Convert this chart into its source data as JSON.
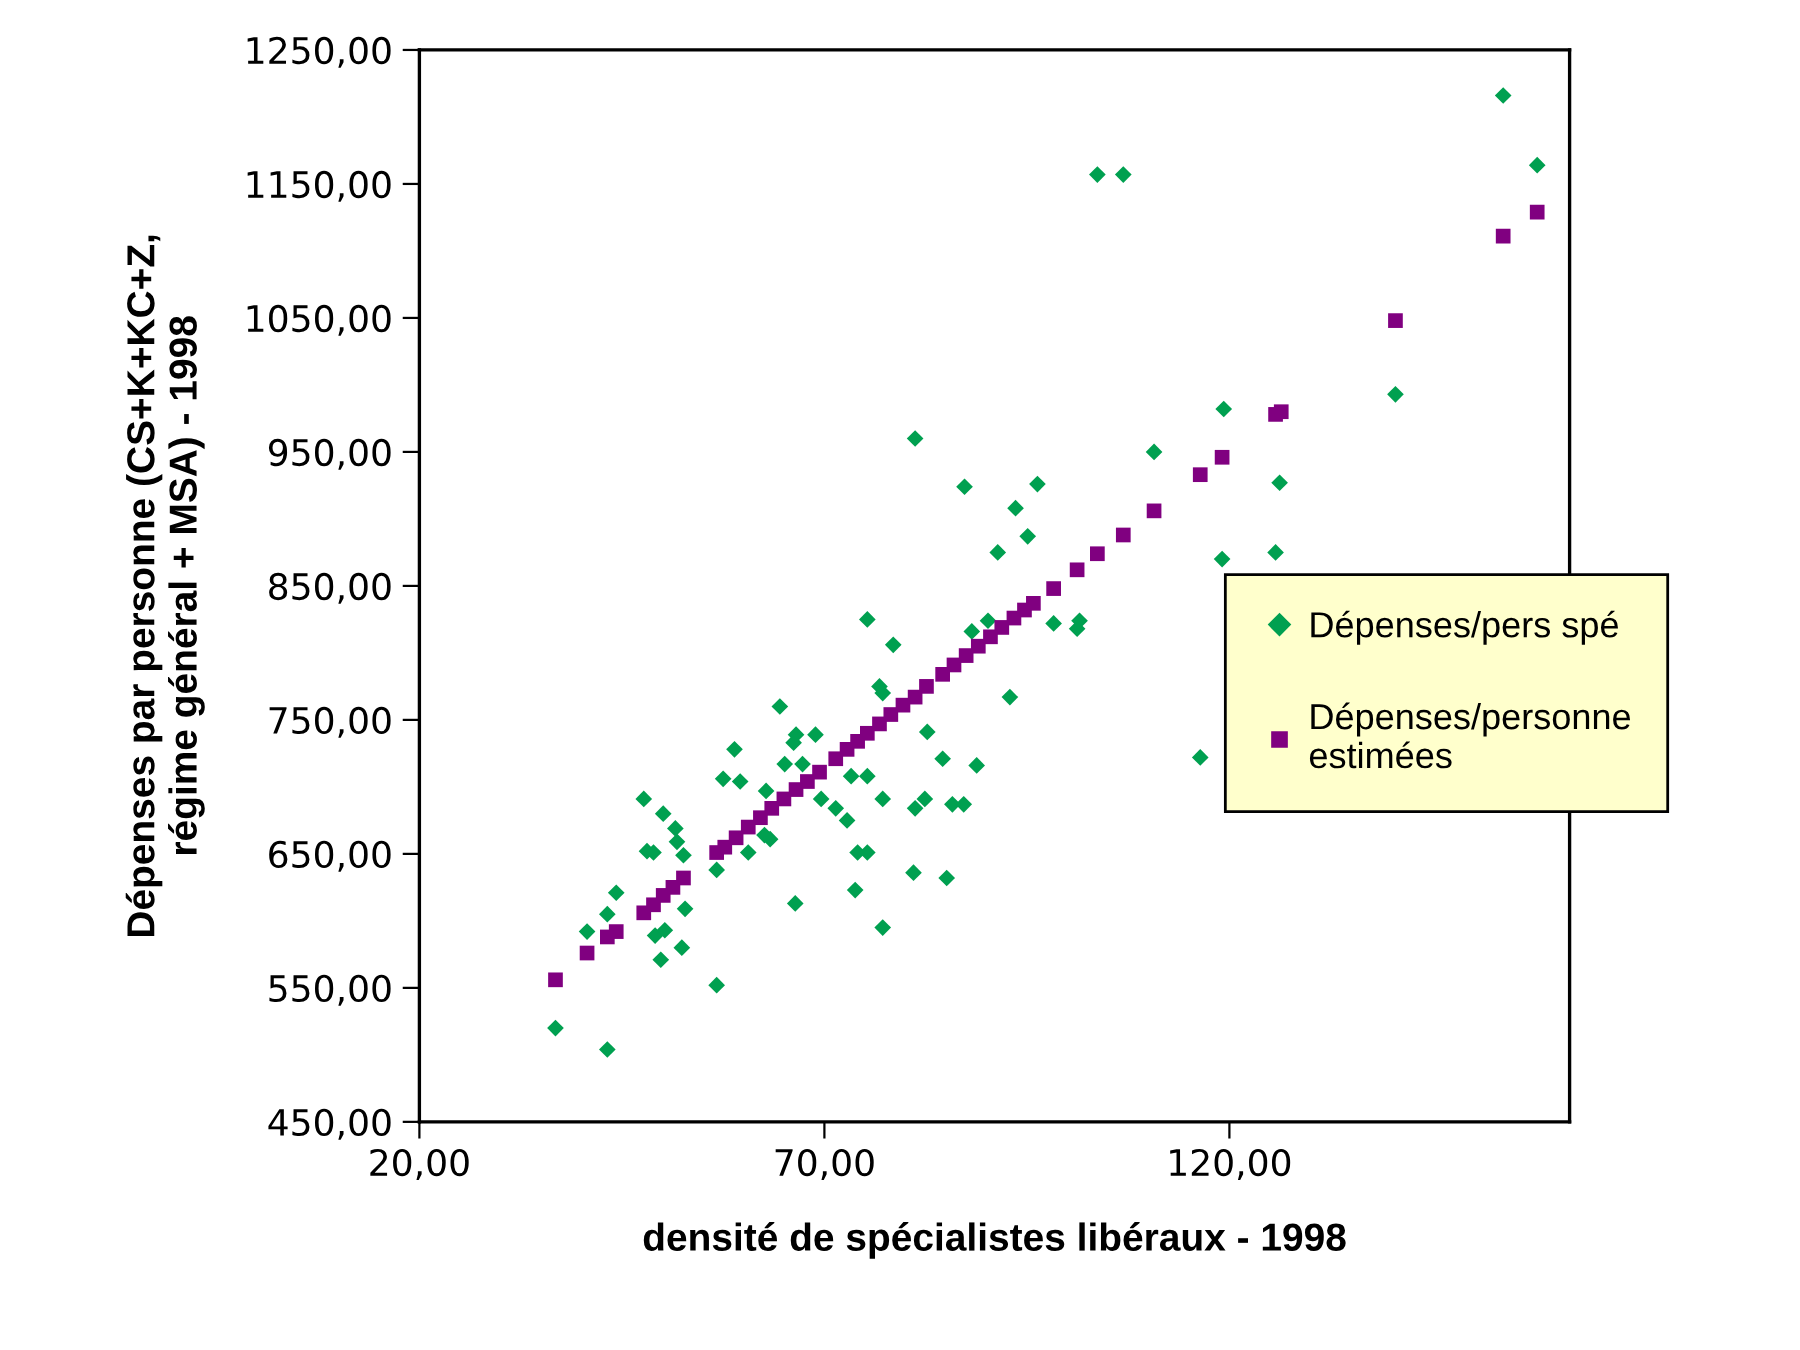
{
  "chart_data": {
    "type": "scatter",
    "xlabel": "densité de spécialistes libéraux - 1998",
    "ylabel": "Dépenses par personne (CS+K+KC+Z,\nrégime général + MSA) - 1998",
    "xlim": [
      20,
      162
    ],
    "ylim": [
      450,
      1250
    ],
    "xticks": [
      {
        "value": 20,
        "label": "20,00"
      },
      {
        "value": 70,
        "label": "70,00"
      },
      {
        "value": 120,
        "label": "120,00"
      }
    ],
    "yticks": [
      {
        "value": 450,
        "label": "450,00"
      },
      {
        "value": 550,
        "label": "550,00"
      },
      {
        "value": 650,
        "label": "650,00"
      },
      {
        "value": 750,
        "label": "750,00"
      },
      {
        "value": 850,
        "label": "850,00"
      },
      {
        "value": 950,
        "label": "950,00"
      },
      {
        "value": 1050,
        "label": "1050,00"
      },
      {
        "value": 1150,
        "label": "1150,00"
      },
      {
        "value": 1250,
        "label": "1250,00"
      }
    ],
    "grid": false,
    "legend": "right",
    "series": [
      {
        "name": "Dépenses/pers spé",
        "color": "#00a050",
        "marker": "diamond",
        "x": [
          36.8,
          43.2,
          40.7,
          43.2,
          44.3,
          47.7,
          48.1,
          48.9,
          50.1,
          51.6,
          51.8,
          52.6,
          52.8,
          49.1,
          49.8,
          50.3,
          52.4,
          56.7,
          56.7,
          57.5,
          58.9,
          59.6,
          60.6,
          62.8,
          62.6,
          63.3,
          64.5,
          65.1,
          66.2,
          66.5,
          66.4,
          67.3,
          68.9,
          69.6,
          71.4,
          72.8,
          73.3,
          73.8,
          74.1,
          75.3,
          75.3,
          75.3,
          76.8,
          77.2,
          77.2,
          77.2,
          78.5,
          81.2,
          81.2,
          82.4,
          82.7,
          84.6,
          85.1,
          85.8,
          87.2,
          88.8,
          81.0,
          87.3,
          88.2,
          90.2,
          91.4,
          92.9,
          93.6,
          95.1,
          96.3,
          98.3,
          101.2,
          101.5,
          103.7,
          106.9,
          110.7,
          116.4,
          119.1,
          119.3,
          125.7,
          126.2,
          140.5,
          153.8,
          158.0
        ],
        "values": [
          520,
          504,
          592,
          605,
          621,
          691,
          652,
          651,
          680,
          669,
          659,
          649,
          609,
          589,
          571,
          593,
          580,
          552,
          638,
          706,
          728,
          704,
          651,
          697,
          664,
          661,
          760,
          717,
          733,
          739,
          613,
          717,
          739,
          691,
          684,
          675,
          708,
          623,
          651,
          651,
          708,
          825,
          775,
          770,
          691,
          595,
          806,
          960,
          684,
          691,
          741,
          721,
          632,
          687,
          687,
          716,
          636,
          924,
          816,
          824,
          875,
          767,
          908,
          887,
          926,
          822,
          818,
          824,
          1157,
          1157,
          950,
          722,
          870,
          982,
          875,
          927,
          993,
          1216,
          1164
        ]
      },
      {
        "name": "Dépenses/personne\nestimées",
        "color": "#800080",
        "marker": "square",
        "x": [
          36.8,
          40.7,
          43.2,
          44.3,
          47.7,
          48.9,
          50.1,
          51.3,
          52.6,
          56.7,
          57.7,
          59.1,
          60.6,
          62.1,
          63.5,
          65.0,
          66.5,
          67.9,
          69.4,
          71.4,
          72.8,
          74.1,
          75.3,
          76.8,
          78.2,
          79.7,
          81.2,
          82.6,
          84.6,
          86.0,
          87.5,
          89.0,
          90.5,
          91.9,
          93.4,
          94.7,
          95.8,
          98.3,
          101.2,
          103.7,
          106.9,
          110.7,
          116.4,
          119.1,
          125.7,
          126.4,
          140.5,
          153.8,
          158.0
        ],
        "values": [
          556,
          576,
          588,
          592,
          606,
          612,
          619,
          625,
          632,
          651,
          655,
          662,
          670,
          677,
          684,
          691,
          698,
          704,
          711,
          721,
          728,
          734,
          740,
          747,
          754,
          761,
          767,
          775,
          784,
          791,
          798,
          805,
          812,
          819,
          826,
          832,
          837,
          848,
          862,
          874,
          888,
          906,
          933,
          946,
          978,
          980,
          1048,
          1111,
          1129
        ]
      }
    ]
  }
}
